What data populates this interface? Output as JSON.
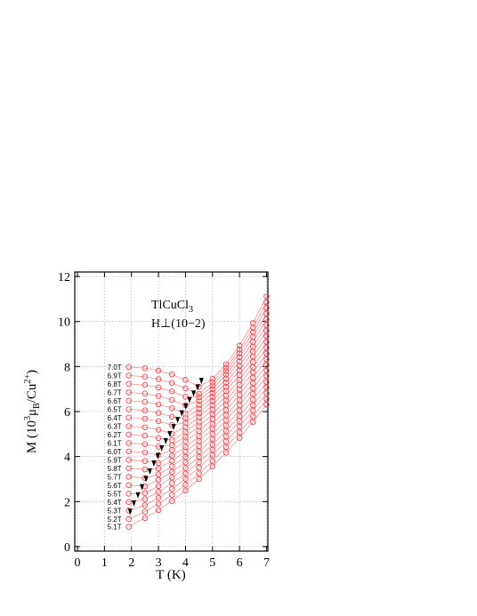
{
  "chart_data": {
    "type": "scatter",
    "xlabel": "T (K)",
    "ylabel": [
      "M (10",
      "3",
      "μ",
      "B",
      "/Cu",
      "2+",
      ")"
    ],
    "annotation": {
      "formula": "TlCuCl",
      "subscript": "3",
      "field": "H⊥(10−2)"
    },
    "xlim": [
      -0.1,
      7.05
    ],
    "ylim": [
      -0.2,
      12.2
    ],
    "xticks": [
      0,
      1,
      2,
      3,
      4,
      5,
      6,
      7
    ],
    "yticks": [
      0,
      2,
      4,
      6,
      8,
      10,
      12
    ],
    "grid": true,
    "x": [
      1.9,
      2.5,
      3,
      3.5,
      4,
      4.5,
      5,
      5.5,
      6,
      6.5,
      7
    ],
    "series": [
      {
        "name": "5.1T",
        "color": "#e8474a",
        "values": [
          0.88,
          1.27,
          1.62,
          2.03,
          2.49,
          3.0,
          3.56,
          4.17,
          4.83,
          5.54,
          6.3
        ]
      },
      {
        "name": "5.2T",
        "color": "#e8474a",
        "values": [
          1.23,
          1.55,
          1.9,
          2.3,
          2.75,
          3.25,
          3.8,
          4.42,
          5.08,
          5.78,
          6.55
        ]
      },
      {
        "name": "5.3T",
        "color": "#e8474a",
        "values": [
          1.6,
          1.84,
          2.17,
          2.56,
          3.01,
          3.51,
          4.06,
          4.67,
          5.33,
          6.04,
          6.81
        ]
      },
      {
        "name": "5.4T",
        "color": "#e8474a",
        "values": [
          1.98,
          2.11,
          2.43,
          2.82,
          3.25,
          3.75,
          4.3,
          4.9,
          5.57,
          6.28,
          7.06
        ]
      },
      {
        "name": "5.5T",
        "color": "#e8474a",
        "values": [
          2.35,
          2.38,
          2.69,
          3.07,
          3.49,
          3.99,
          4.53,
          5.14,
          5.8,
          6.53,
          7.31
        ]
      },
      {
        "name": "5.6T",
        "color": "#e8474a",
        "values": [
          2.73,
          2.68,
          2.96,
          3.32,
          3.74,
          4.23,
          4.77,
          5.38,
          6.05,
          6.78,
          7.57
        ]
      },
      {
        "name": "5.7T",
        "color": "#e8474a",
        "values": [
          3.1,
          3.05,
          3.21,
          3.56,
          3.98,
          4.46,
          5.0,
          5.61,
          6.28,
          7.02,
          7.82
        ]
      },
      {
        "name": "5.8T",
        "color": "#e8474a",
        "values": [
          3.48,
          3.43,
          3.47,
          3.81,
          4.22,
          4.69,
          5.23,
          5.84,
          6.51,
          7.26,
          8.07
        ]
      },
      {
        "name": "5.9T",
        "color": "#e8474a",
        "values": [
          3.85,
          3.8,
          3.71,
          4.04,
          4.43,
          4.9,
          5.44,
          6.06,
          6.74,
          7.5,
          8.32
        ]
      },
      {
        "name": "6.0T",
        "color": "#e8474a",
        "values": [
          4.23,
          4.18,
          4.07,
          4.29,
          4.67,
          5.13,
          5.67,
          6.29,
          6.98,
          7.74,
          8.58
        ]
      },
      {
        "name": "6.1T",
        "color": "#e8474a",
        "values": [
          4.6,
          4.55,
          4.44,
          4.51,
          4.88,
          5.34,
          5.88,
          6.5,
          7.19,
          7.97,
          8.83
        ]
      },
      {
        "name": "6.2T",
        "color": "#e8474a",
        "values": [
          4.98,
          4.93,
          4.82,
          4.73,
          5.09,
          5.55,
          6.08,
          6.7,
          7.41,
          8.2,
          9.08
        ]
      },
      {
        "name": "6.3T",
        "color": "#e8474a",
        "values": [
          5.35,
          5.3,
          5.19,
          5.02,
          5.3,
          5.75,
          6.28,
          6.91,
          7.63,
          8.44,
          9.34
        ]
      },
      {
        "name": "6.4T",
        "color": "#e8474a",
        "values": [
          5.73,
          5.68,
          5.57,
          5.4,
          5.51,
          5.94,
          6.47,
          7.1,
          7.83,
          8.66,
          9.59
        ]
      },
      {
        "name": "6.5T",
        "color": "#e8474a",
        "values": [
          6.1,
          6.05,
          5.94,
          5.77,
          5.7,
          6.12,
          6.65,
          7.28,
          8.03,
          8.88,
          9.84
        ]
      },
      {
        "name": "6.6T",
        "color": "#e8474a",
        "values": [
          6.48,
          6.43,
          6.32,
          6.15,
          5.91,
          6.3,
          6.82,
          7.47,
          8.23,
          9.1,
          10.1
        ]
      },
      {
        "name": "6.7T",
        "color": "#e8474a",
        "values": [
          6.85,
          6.8,
          6.69,
          6.52,
          6.28,
          6.48,
          6.99,
          7.64,
          8.42,
          9.32,
          10.35
        ]
      },
      {
        "name": "6.8T",
        "color": "#e8474a",
        "values": [
          7.23,
          7.18,
          7.07,
          6.9,
          6.66,
          6.64,
          7.15,
          7.8,
          8.59,
          9.53,
          10.6
        ]
      },
      {
        "name": "6.9T",
        "color": "#e8474a",
        "values": [
          7.6,
          7.55,
          7.44,
          7.27,
          7.03,
          6.79,
          7.29,
          7.94,
          8.75,
          9.72,
          10.85
        ]
      },
      {
        "name": "7.0T",
        "color": "#e8474a",
        "values": [
          7.98,
          7.93,
          7.82,
          7.65,
          7.41,
          7.1,
          7.45,
          8.1,
          8.93,
          9.93,
          11.11
        ]
      }
    ],
    "tc_markers": {
      "color": "#000000",
      "x": [
        1.95,
        2.09,
        2.24,
        2.39,
        2.54,
        2.68,
        2.83,
        2.98,
        3.12,
        3.27,
        3.42,
        3.56,
        3.71,
        3.86,
        4.01,
        4.15,
        4.3,
        4.45,
        4.59
      ],
      "y": [
        1.53,
        1.9,
        2.26,
        2.62,
        2.98,
        3.32,
        3.67,
        4.0,
        4.34,
        4.66,
        4.98,
        5.29,
        5.6,
        5.9,
        6.2,
        6.49,
        6.78,
        7.05,
        7.34
      ]
    }
  }
}
